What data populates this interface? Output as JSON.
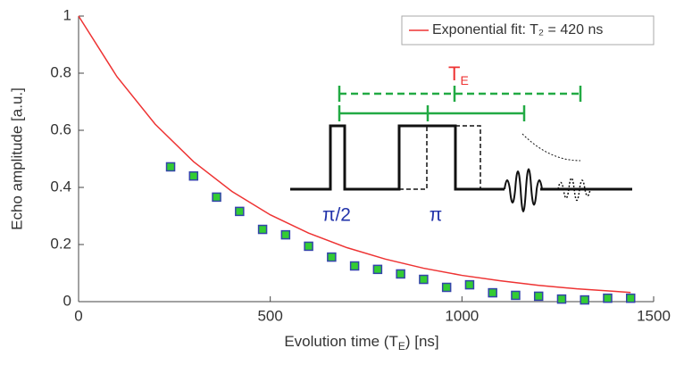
{
  "chart_data": {
    "type": "scatter",
    "xlabel": {
      "text": "Evolution time (T",
      "sub": "E",
      "after": ") [ns]"
    },
    "ylabel": "Echo amplitude [a.u.]",
    "xlim": [
      0,
      1500
    ],
    "xticks": [
      0,
      500,
      1000,
      1500
    ],
    "ylim": [
      0,
      1
    ],
    "yticks": [
      0,
      0.2,
      0.4,
      0.6,
      0.8,
      1
    ],
    "points": {
      "color": "#33cc33",
      "edge": "#3344aa",
      "x": [
        240,
        300,
        360,
        420,
        480,
        540,
        600,
        660,
        720,
        780,
        840,
        900,
        960,
        1020,
        1080,
        1140,
        1200,
        1260,
        1320,
        1380,
        1440
      ],
      "values": [
        0.472,
        0.44,
        0.366,
        0.316,
        0.253,
        0.234,
        0.194,
        0.156,
        0.125,
        0.113,
        0.097,
        0.078,
        0.05,
        0.059,
        0.031,
        0.022,
        0.019,
        0.009,
        0.006,
        0.012,
        0.012
      ]
    },
    "series": [
      {
        "name": "Exponential fit: T₂ = 420 ns",
        "color": "#ee3333",
        "x": [
          0,
          100,
          200,
          300,
          400,
          500,
          600,
          700,
          800,
          900,
          1000,
          1100,
          1200,
          1300,
          1400,
          1440
        ],
        "values": [
          1,
          0.788,
          0.621,
          0.49,
          0.386,
          0.304,
          0.24,
          0.189,
          0.149,
          0.117,
          0.092,
          0.073,
          0.057,
          0.045,
          0.036,
          0.032
        ]
      }
    ],
    "annotations": {
      "echo_time": {
        "text": "T",
        "sub": "E"
      },
      "pulse_90": "π/2",
      "pulse_180": "π"
    }
  }
}
